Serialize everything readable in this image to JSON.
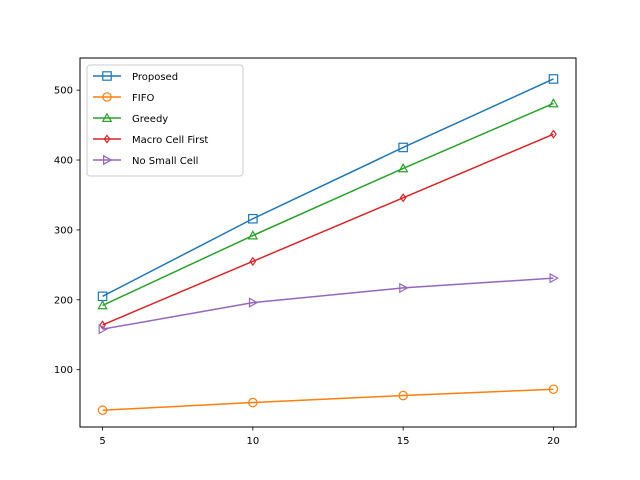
{
  "chart_data": {
    "type": "line",
    "title": "",
    "xlabel": "",
    "ylabel": "",
    "x": [
      5,
      10,
      15,
      20
    ],
    "xlim": [
      4.25,
      20.75
    ],
    "ylim": [
      18,
      546
    ],
    "xticks": [
      5,
      10,
      15,
      20
    ],
    "yticks": [
      100,
      200,
      300,
      400,
      500
    ],
    "grid": false,
    "legend_position": "top-left",
    "series": [
      {
        "name": "Proposed",
        "color": "#1f77b4",
        "marker": "square",
        "values": [
          205,
          316,
          418,
          516
        ]
      },
      {
        "name": "FIFO",
        "color": "#ff7f0e",
        "marker": "circle",
        "values": [
          42,
          53,
          63,
          72
        ]
      },
      {
        "name": "Greedy",
        "color": "#2ca02c",
        "marker": "triangle-up",
        "values": [
          192,
          292,
          388,
          481
        ]
      },
      {
        "name": "Macro Cell First",
        "color": "#d62728",
        "marker": "diamond",
        "values": [
          164,
          255,
          346,
          437
        ]
      },
      {
        "name": "No Small Cell",
        "color": "#9467bd",
        "marker": "triangle-right",
        "values": [
          158,
          196,
          217,
          231
        ]
      }
    ]
  }
}
